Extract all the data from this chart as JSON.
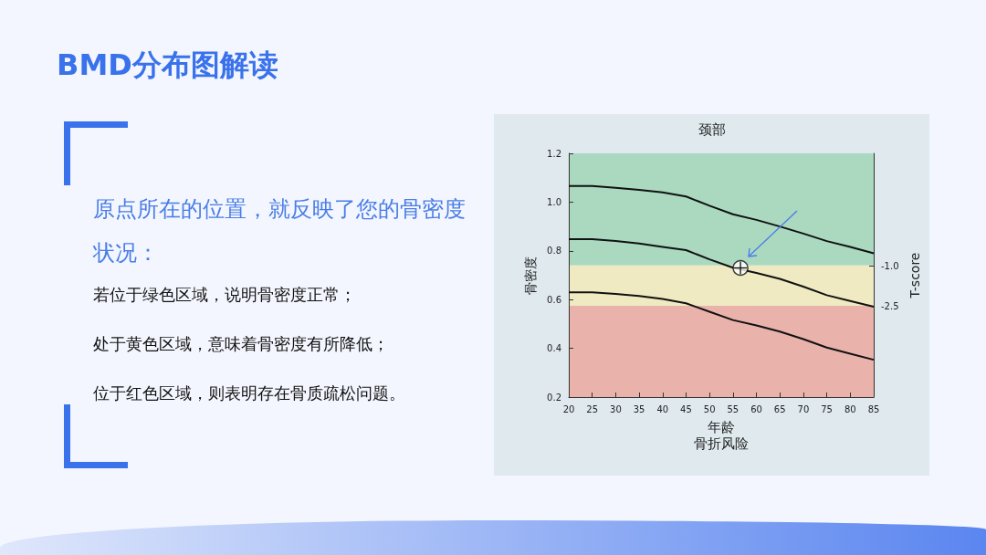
{
  "chart_data": {
    "type": "line",
    "title": "BMD分布图解读",
    "subtitle": "颈部",
    "xlabel": "年龄",
    "ylabel": "骨密度",
    "y2label": "T-score",
    "annotations": [
      "原点所在的位置，就反映了您的骨密度状况：",
      "若位于绿色区域，说明骨密度正常；",
      "处于黄色区域，意味着骨密度有所降低；",
      "位于红色区域，则表明存在骨质疏松问题。",
      "骨折风险"
    ],
    "x": [
      20,
      25,
      30,
      35,
      40,
      45,
      50,
      55,
      60,
      65,
      70,
      75,
      80,
      85
    ],
    "series": [
      {
        "color": "#111111",
        "values": [
          1.066,
          1.066,
          1.059,
          1.05,
          1.04,
          1.023,
          0.985,
          0.95,
          0.927,
          0.9,
          0.871,
          0.84,
          0.816,
          0.79
        ]
      },
      {
        "color": "#111111",
        "values": [
          0.848,
          0.848,
          0.84,
          0.83,
          0.816,
          0.803,
          0.765,
          0.731,
          0.709,
          0.685,
          0.653,
          0.618,
          0.594,
          0.571
        ]
      },
      {
        "color": "#111111",
        "values": [
          0.63,
          0.63,
          0.623,
          0.615,
          0.603,
          0.585,
          0.55,
          0.516,
          0.494,
          0.469,
          0.438,
          0.403,
          0.378,
          0.353
        ]
      },
      {
        "type": "scatter",
        "marker": "circle",
        "color": "#ffffff",
        "x": [
          56.6
        ],
        "values": [
          0.73
        ]
      }
    ],
    "bands": [
      {
        "axis": "y",
        "from": 0.74,
        "to": 1.2,
        "color": "#aad9c0"
      },
      {
        "axis": "y",
        "from": 0.575,
        "to": 0.74,
        "color": "#efeac2"
      },
      {
        "axis": "y",
        "from": 0.2,
        "to": 0.575,
        "color": "#e9b3ab"
      }
    ],
    "xlim": [
      20,
      85
    ],
    "xticks": [
      20,
      25,
      30,
      35,
      40,
      45,
      50,
      55,
      60,
      65,
      70,
      75,
      80,
      85
    ],
    "ylim": [
      0.2,
      1.2
    ],
    "yticks": [
      0.2,
      0.4,
      0.6,
      0.8,
      {
        "value": 1,
        "label": "1.0"
      },
      1.2
    ],
    "y2lim": [
      -5.9,
      3.2
    ],
    "y2ticks": [
      {
        "value": -2.5,
        "label": "-2.5"
      },
      {
        "value": -1,
        "label": "-1.0"
      }
    ],
    "marker": "none",
    "line_style": "solid"
  }
}
